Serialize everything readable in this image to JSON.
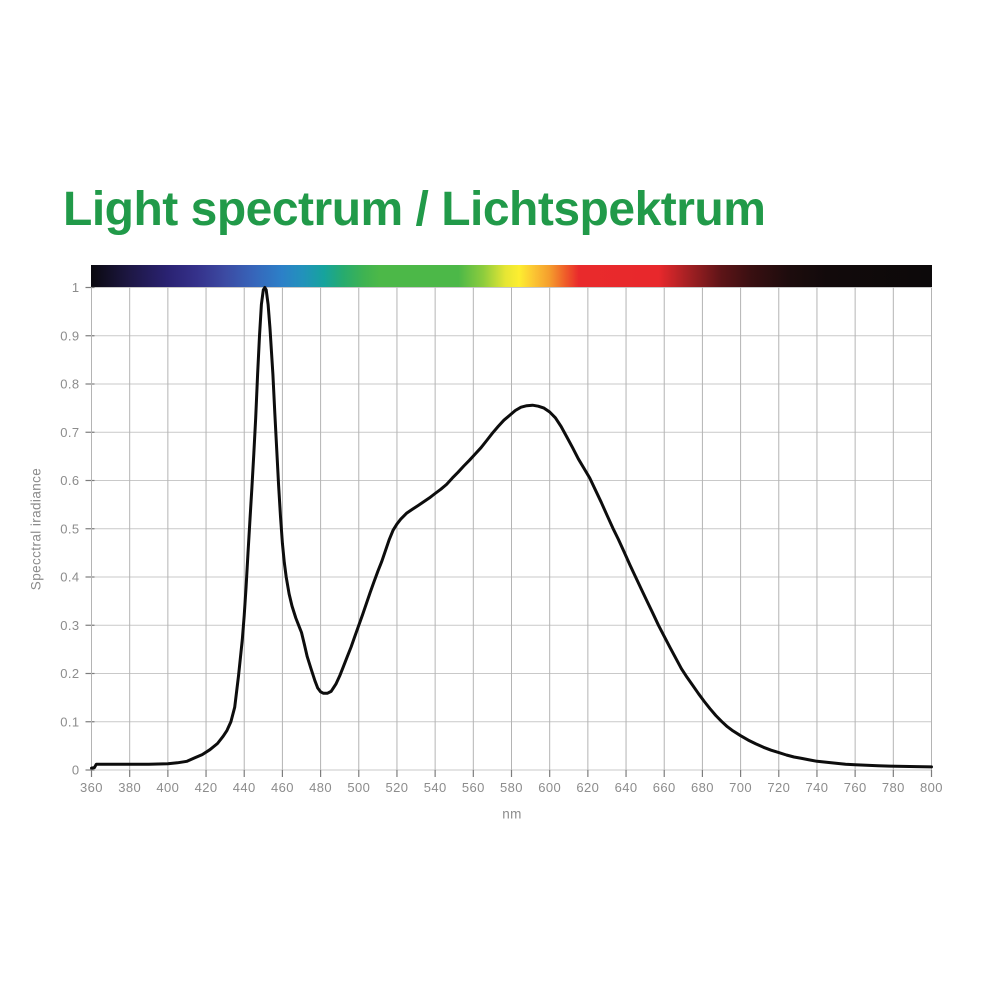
{
  "title": {
    "text": "Light spectrum / Lichtspektrum",
    "color": "#219a49"
  },
  "chart_data": {
    "type": "line",
    "title": "Light spectrum / Lichtspektrum",
    "xlabel": "nm",
    "ylabel": "Specctral iradiance",
    "xlim": [
      360,
      800
    ],
    "ylim": [
      0,
      1
    ],
    "grid": true,
    "legend": false,
    "x_ticks": [
      360,
      380,
      400,
      420,
      440,
      460,
      480,
      500,
      520,
      540,
      560,
      580,
      600,
      620,
      640,
      660,
      680,
      700,
      720,
      740,
      760,
      780,
      800
    ],
    "x_tick_labels": [
      "360",
      "380",
      "400",
      "420",
      "440",
      "460",
      "480",
      "500",
      "520",
      "540",
      "560",
      "580",
      "600",
      "620",
      "640",
      "660",
      "680",
      "700",
      "720",
      "740",
      "760",
      "780",
      "800"
    ],
    "y_ticks": [
      0,
      0.1,
      0.2,
      0.3,
      0.4,
      0.5,
      0.6,
      0.7,
      0.8,
      0.9,
      1
    ],
    "y_tick_labels": [
      "0",
      "0.1",
      "0.2",
      "0.3",
      "0.4",
      "0.5",
      "0.6",
      "0.7",
      "0.8",
      "0.9",
      "1"
    ],
    "series": [
      {
        "name": "spectral-irradiance-curve",
        "color": "#0d0d0d",
        "points": [
          [
            360,
            0.004
          ],
          [
            361.5,
            0.005
          ],
          [
            362.5,
            0.012
          ],
          [
            370,
            0.012
          ],
          [
            380,
            0.012
          ],
          [
            390,
            0.012
          ],
          [
            400,
            0.013
          ],
          [
            405,
            0.015
          ],
          [
            410,
            0.018
          ],
          [
            414,
            0.025
          ],
          [
            418,
            0.032
          ],
          [
            422,
            0.042
          ],
          [
            426,
            0.055
          ],
          [
            429,
            0.07
          ],
          [
            431,
            0.082
          ],
          [
            433,
            0.1
          ],
          [
            435,
            0.13
          ],
          [
            437,
            0.195
          ],
          [
            439,
            0.27
          ],
          [
            440,
            0.32
          ],
          [
            441,
            0.38
          ],
          [
            442,
            0.45
          ],
          [
            443,
            0.52
          ],
          [
            444,
            0.585
          ],
          [
            445,
            0.655
          ],
          [
            446,
            0.73
          ],
          [
            447,
            0.82
          ],
          [
            448,
            0.9
          ],
          [
            449,
            0.965
          ],
          [
            450,
            0.995
          ],
          [
            450.8,
            1.0
          ],
          [
            451.5,
            0.995
          ],
          [
            452.5,
            0.965
          ],
          [
            453.5,
            0.915
          ],
          [
            455,
            0.82
          ],
          [
            456,
            0.74
          ],
          [
            457,
            0.665
          ],
          [
            458,
            0.59
          ],
          [
            459,
            0.525
          ],
          [
            460,
            0.47
          ],
          [
            461,
            0.43
          ],
          [
            462,
            0.4
          ],
          [
            463.5,
            0.365
          ],
          [
            465,
            0.34
          ],
          [
            467,
            0.315
          ],
          [
            469,
            0.295
          ],
          [
            470,
            0.285
          ],
          [
            471.5,
            0.26
          ],
          [
            473,
            0.235
          ],
          [
            475,
            0.21
          ],
          [
            477,
            0.185
          ],
          [
            478.5,
            0.17
          ],
          [
            480,
            0.162
          ],
          [
            481.5,
            0.159
          ],
          [
            483.5,
            0.159
          ],
          [
            485.5,
            0.163
          ],
          [
            487,
            0.172
          ],
          [
            488,
            0.178
          ],
          [
            490,
            0.195
          ],
          [
            492,
            0.215
          ],
          [
            494,
            0.235
          ],
          [
            496,
            0.255
          ],
          [
            498,
            0.278
          ],
          [
            500,
            0.3
          ],
          [
            502,
            0.322
          ],
          [
            504,
            0.345
          ],
          [
            506,
            0.368
          ],
          [
            508,
            0.39
          ],
          [
            510,
            0.412
          ],
          [
            512,
            0.432
          ],
          [
            514,
            0.455
          ],
          [
            516,
            0.478
          ],
          [
            518,
            0.497
          ],
          [
            520,
            0.51
          ],
          [
            522,
            0.52
          ],
          [
            525,
            0.532
          ],
          [
            528,
            0.54
          ],
          [
            531,
            0.548
          ],
          [
            534,
            0.556
          ],
          [
            537,
            0.564
          ],
          [
            540,
            0.573
          ],
          [
            543,
            0.582
          ],
          [
            546,
            0.592
          ],
          [
            549,
            0.605
          ],
          [
            552,
            0.617
          ],
          [
            555,
            0.63
          ],
          [
            558,
            0.642
          ],
          [
            561,
            0.655
          ],
          [
            564,
            0.668
          ],
          [
            567,
            0.683
          ],
          [
            570,
            0.698
          ],
          [
            573,
            0.712
          ],
          [
            576,
            0.725
          ],
          [
            579,
            0.735
          ],
          [
            582,
            0.745
          ],
          [
            585,
            0.752
          ],
          [
            588,
            0.755
          ],
          [
            591,
            0.756
          ],
          [
            594,
            0.754
          ],
          [
            597,
            0.75
          ],
          [
            600,
            0.742
          ],
          [
            603,
            0.73
          ],
          [
            606,
            0.712
          ],
          [
            609,
            0.69
          ],
          [
            612,
            0.668
          ],
          [
            615,
            0.645
          ],
          [
            618,
            0.625
          ],
          [
            621,
            0.605
          ],
          [
            624,
            0.58
          ],
          [
            627,
            0.555
          ],
          [
            630,
            0.528
          ],
          [
            633,
            0.502
          ],
          [
            636,
            0.478
          ],
          [
            639,
            0.452
          ],
          [
            642,
            0.425
          ],
          [
            645,
            0.4
          ],
          [
            648,
            0.375
          ],
          [
            651,
            0.35
          ],
          [
            654,
            0.325
          ],
          [
            657,
            0.3
          ],
          [
            660,
            0.277
          ],
          [
            663,
            0.254
          ],
          [
            666,
            0.232
          ],
          [
            669,
            0.21
          ],
          [
            672,
            0.192
          ],
          [
            675,
            0.175
          ],
          [
            678,
            0.158
          ],
          [
            681,
            0.142
          ],
          [
            684,
            0.127
          ],
          [
            687,
            0.113
          ],
          [
            690,
            0.101
          ],
          [
            693,
            0.09
          ],
          [
            696,
            0.081
          ],
          [
            700,
            0.071
          ],
          [
            704,
            0.062
          ],
          [
            708,
            0.054
          ],
          [
            712,
            0.047
          ],
          [
            716,
            0.041
          ],
          [
            720,
            0.036
          ],
          [
            724,
            0.031
          ],
          [
            728,
            0.027
          ],
          [
            732,
            0.024
          ],
          [
            736,
            0.021
          ],
          [
            740,
            0.018
          ],
          [
            745,
            0.016
          ],
          [
            750,
            0.014
          ],
          [
            755,
            0.012
          ],
          [
            760,
            0.011
          ],
          [
            766,
            0.01
          ],
          [
            772,
            0.009
          ],
          [
            778,
            0.008
          ],
          [
            785,
            0.0075
          ],
          [
            792,
            0.007
          ],
          [
            800,
            0.0065
          ]
        ]
      }
    ],
    "spectrum_bar_stops": [
      {
        "pos": 0.0,
        "color": "#0a090f"
      },
      {
        "pos": 0.045,
        "color": "#1d1743"
      },
      {
        "pos": 0.091,
        "color": "#2a2272"
      },
      {
        "pos": 0.125,
        "color": "#35318a"
      },
      {
        "pos": 0.159,
        "color": "#3c4aa2"
      },
      {
        "pos": 0.193,
        "color": "#3765ba"
      },
      {
        "pos": 0.227,
        "color": "#2c80c8"
      },
      {
        "pos": 0.252,
        "color": "#2292bb"
      },
      {
        "pos": 0.277,
        "color": "#16a39d"
      },
      {
        "pos": 0.3,
        "color": "#27ab6e"
      },
      {
        "pos": 0.325,
        "color": "#3fb351"
      },
      {
        "pos": 0.343,
        "color": "#4cb848"
      },
      {
        "pos": 0.437,
        "color": "#4cb848"
      },
      {
        "pos": 0.466,
        "color": "#8ccc3d"
      },
      {
        "pos": 0.493,
        "color": "#e6e634"
      },
      {
        "pos": 0.509,
        "color": "#fdee30"
      },
      {
        "pos": 0.527,
        "color": "#fbc433"
      },
      {
        "pos": 0.545,
        "color": "#f59e2d"
      },
      {
        "pos": 0.564,
        "color": "#ef5d29"
      },
      {
        "pos": 0.58,
        "color": "#e92a2c"
      },
      {
        "pos": 0.675,
        "color": "#e8282c"
      },
      {
        "pos": 0.71,
        "color": "#a42023"
      },
      {
        "pos": 0.75,
        "color": "#5c1417"
      },
      {
        "pos": 0.785,
        "color": "#390f11"
      },
      {
        "pos": 0.83,
        "color": "#1d0c0d"
      },
      {
        "pos": 0.875,
        "color": "#120a0b"
      },
      {
        "pos": 1.0,
        "color": "#0c090a"
      }
    ],
    "colors": {
      "title_green": "#219a49",
      "curve": "#0d0d0d",
      "grid_vertical": "#b4b4b4",
      "grid_horizontal": "#c9c9c9",
      "tick": "#7d7d7d",
      "axis_text": "#8c8c8c"
    }
  }
}
